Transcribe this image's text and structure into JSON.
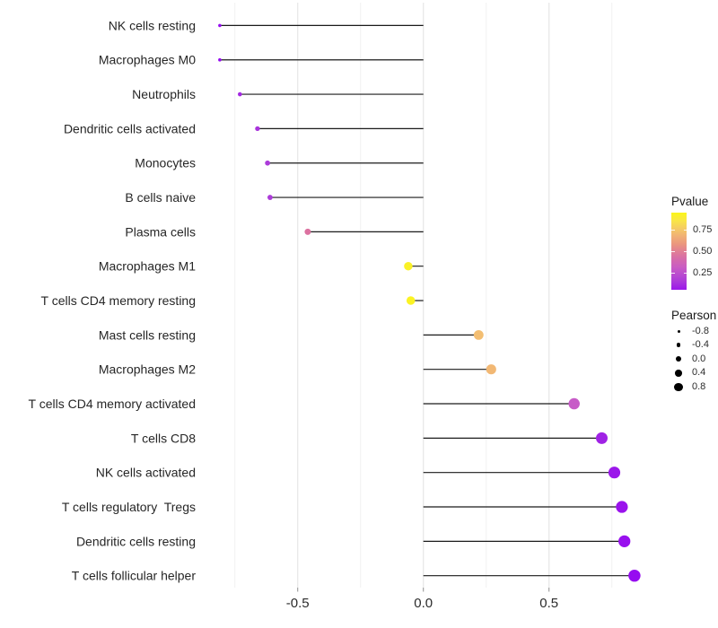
{
  "chart_data": {
    "type": "scatter",
    "subtype": "lollipop",
    "orientation": "horizontal",
    "title": "",
    "xlabel": "",
    "ylabel": "",
    "x_tick_labels": [
      "-0.5",
      "0.0",
      "0.5"
    ],
    "x_tick_values": [
      -0.5,
      0.0,
      0.5
    ],
    "x_minor_grid_values": [
      -0.75,
      -0.25,
      0.25,
      0.75
    ],
    "xlim": [
      -0.9,
      0.93
    ],
    "grid": "vertical only, light gray on white",
    "legend_position": "right",
    "points": [
      {
        "label": "NK cells resting",
        "pearson": -0.81,
        "pvalue": 0.02
      },
      {
        "label": "Macrophages M0",
        "pearson": -0.81,
        "pvalue": 0.02
      },
      {
        "label": "Neutrophils",
        "pearson": -0.73,
        "pvalue": 0.1
      },
      {
        "label": "Dendritic cells activated",
        "pearson": -0.66,
        "pvalue": 0.13
      },
      {
        "label": "Monocytes",
        "pearson": -0.62,
        "pvalue": 0.15
      },
      {
        "label": "B cells naive",
        "pearson": -0.61,
        "pvalue": 0.15
      },
      {
        "label": "Plasma cells",
        "pearson": -0.46,
        "pvalue": 0.45
      },
      {
        "label": "Macrophages M1",
        "pearson": -0.06,
        "pvalue": 0.92
      },
      {
        "label": "T cells CD4 memory resting",
        "pearson": -0.05,
        "pvalue": 0.93
      },
      {
        "label": "Mast cells resting",
        "pearson": 0.22,
        "pvalue": 0.72
      },
      {
        "label": "Macrophages M2",
        "pearson": 0.27,
        "pvalue": 0.7
      },
      {
        "label": "T cells CD4 memory activated",
        "pearson": 0.6,
        "pvalue": 0.3
      },
      {
        "label": "T cells CD8",
        "pearson": 0.71,
        "pvalue": 0.08
      },
      {
        "label": "NK cells activated",
        "pearson": 0.76,
        "pvalue": 0.05
      },
      {
        "label": "T cells regulatory  Tregs",
        "pearson": 0.79,
        "pvalue": 0.04
      },
      {
        "label": "Dendritic cells resting",
        "pearson": 0.8,
        "pvalue": 0.03
      },
      {
        "label": "T cells follicular helper",
        "pearson": 0.84,
        "pvalue": 0.02
      }
    ],
    "color_legend": {
      "title": "Pvalue",
      "tick_labels": [
        "0.75",
        "0.50",
        "0.25"
      ],
      "tick_values": [
        0.75,
        0.5,
        0.25
      ],
      "bar_value_range": [
        0.05,
        0.95
      ],
      "gradient_stops": [
        {
          "at": 0.0,
          "color": "#9305F3"
        },
        {
          "at": 0.15,
          "color": "#AC3BD9"
        },
        {
          "at": 0.3,
          "color": "#C75BC7"
        },
        {
          "at": 0.45,
          "color": "#DC71A0"
        },
        {
          "at": 0.6,
          "color": "#EC9B7B"
        },
        {
          "at": 0.72,
          "color": "#F3BE72"
        },
        {
          "at": 0.85,
          "color": "#F9E54A"
        },
        {
          "at": 1.0,
          "color": "#FCFF00"
        }
      ]
    },
    "size_legend": {
      "title": "Pearson",
      "labels": [
        "-0.8",
        "-0.4",
        "0.0",
        "0.4",
        "0.8"
      ],
      "values": [
        -0.8,
        -0.4,
        0.0,
        0.4,
        0.8
      ]
    },
    "colors": {
      "stem": "#1a1a1a",
      "grid_major": "#e8e8e8",
      "grid_minor": "#f2f2f2",
      "axis_tick": "#999999",
      "axis_text": "#2b2b2b",
      "label_text": "#262626"
    }
  }
}
